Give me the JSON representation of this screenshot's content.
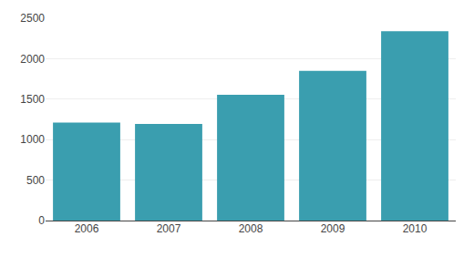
{
  "chart_data": {
    "type": "bar",
    "categories": [
      "2006",
      "2007",
      "2008",
      "2009",
      "2010"
    ],
    "values": [
      1210,
      1195,
      1555,
      1850,
      2340
    ],
    "color": "#3a9eaf",
    "ylim": [
      0,
      2500
    ],
    "yticks": [
      0,
      500,
      1000,
      1500,
      2000,
      2500
    ],
    "grid": true
  }
}
